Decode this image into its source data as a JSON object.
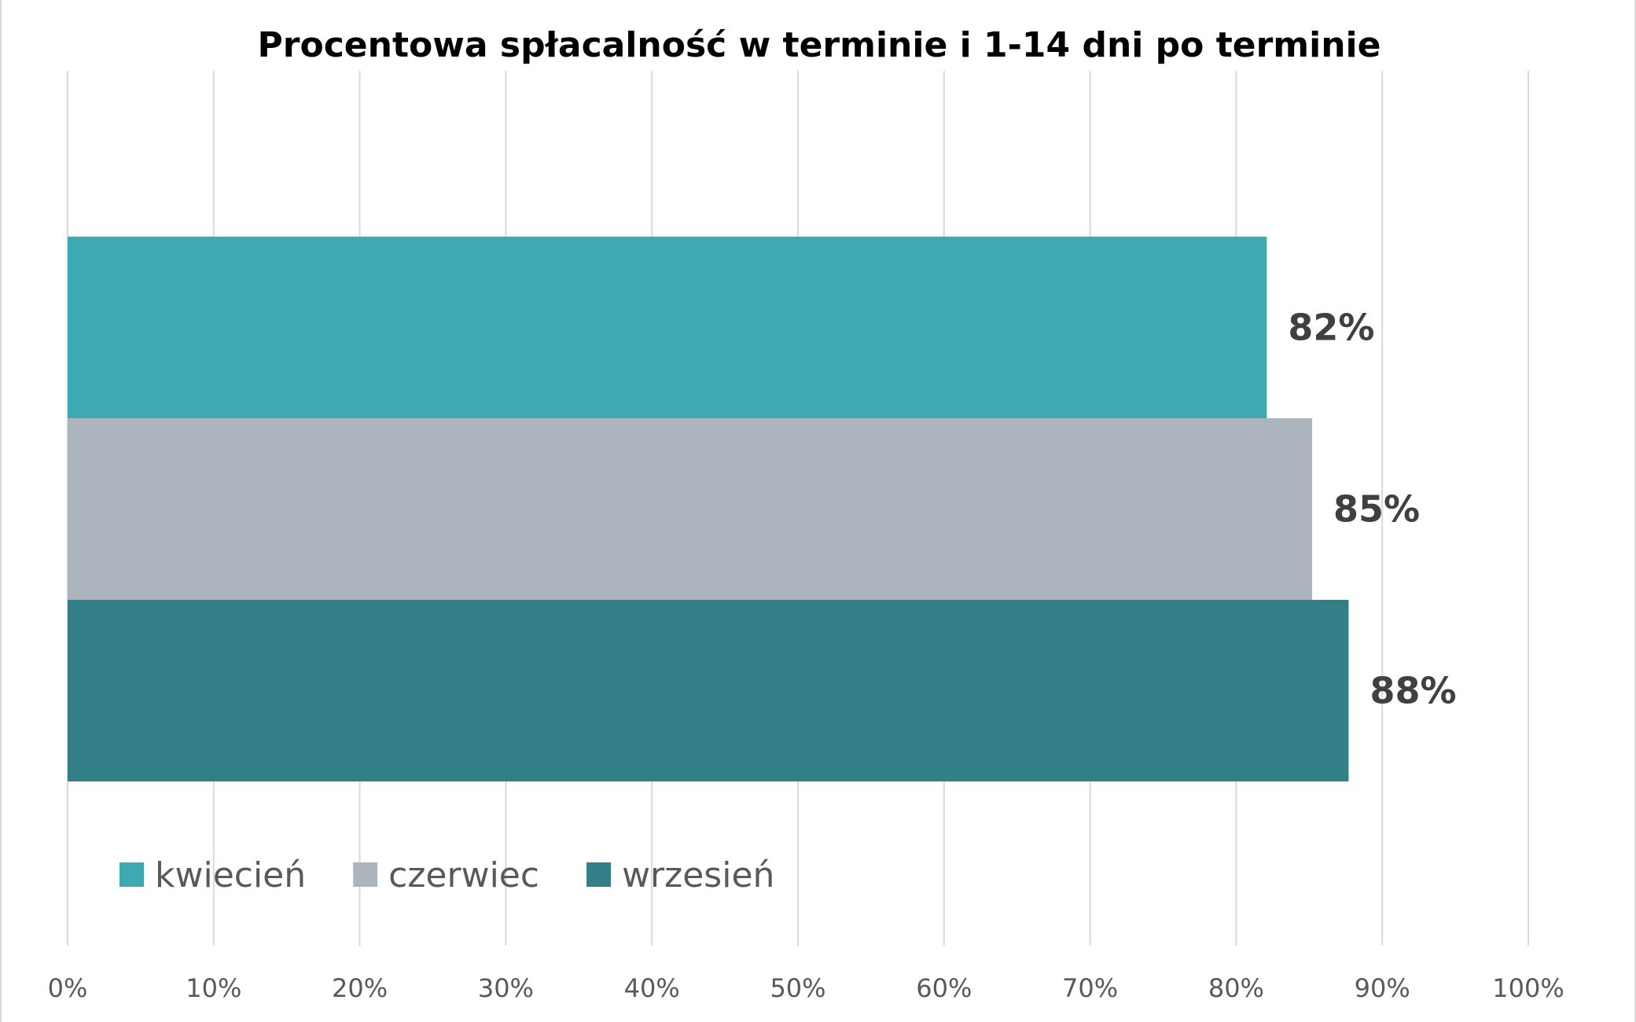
{
  "chart_data": {
    "type": "bar",
    "orientation": "horizontal",
    "title": "Procentowa spłacalność w terminie i 1-14 dni po terminie",
    "xlabel": "",
    "ylabel": "",
    "xlim": [
      0,
      100
    ],
    "x_ticks": [
      "0%",
      "10%",
      "20%",
      "30%",
      "40%",
      "50%",
      "60%",
      "70%",
      "80%",
      "90%",
      "100%"
    ],
    "grid": "vertical",
    "legend_position": "bottom-left",
    "series": [
      {
        "name": "kwiecień",
        "value": 82.1,
        "label": "82%",
        "color": "#3ea8b3"
      },
      {
        "name": "czerwiec",
        "value": 85.2,
        "label": "85%",
        "color": "#acb5bd"
      },
      {
        "name": "wrzesień",
        "value": 87.7,
        "label": "88%",
        "color": "#327f87"
      }
    ]
  }
}
